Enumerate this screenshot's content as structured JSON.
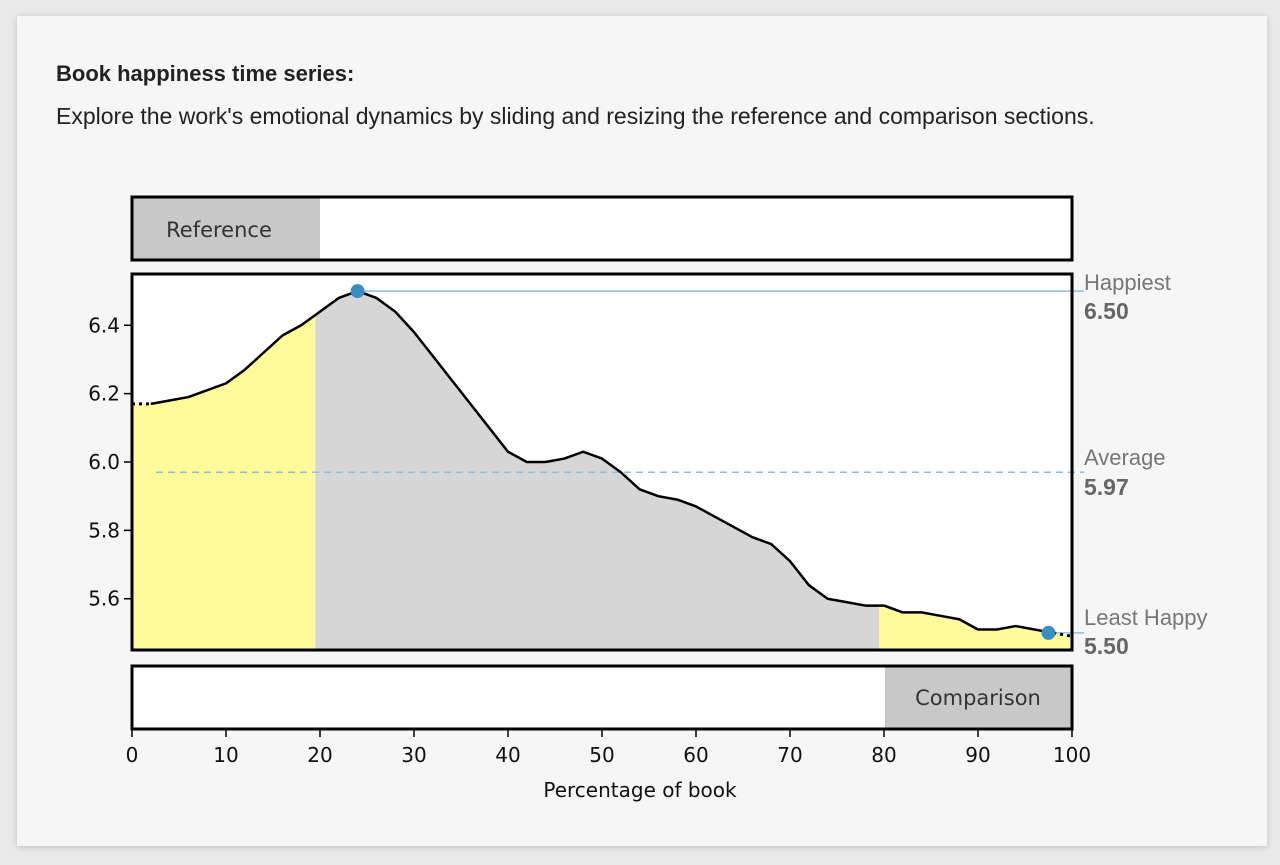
{
  "header": {
    "title": "Book happiness time series:",
    "description": "Explore the work's emotional dynamics by sliding and resizing the reference and comparison sections."
  },
  "sliders": {
    "reference_label": "Reference",
    "reference_range": [
      0,
      20
    ],
    "comparison_label": "Comparison",
    "comparison_range": [
      80,
      100
    ]
  },
  "chart_data": {
    "type": "area",
    "xlabel": "Percentage of book",
    "ylabel": "",
    "xlim": [
      0,
      100
    ],
    "ylim": [
      5.45,
      6.55
    ],
    "x_ticks": [
      0,
      10,
      20,
      30,
      40,
      50,
      60,
      70,
      80,
      90,
      100
    ],
    "y_ticks": [
      5.6,
      5.8,
      6.0,
      6.2,
      6.4
    ],
    "series": [
      {
        "x": [
          0,
          2,
          4,
          6,
          8,
          10,
          12,
          14,
          16,
          18,
          20,
          22,
          24,
          26,
          28,
          30,
          32,
          34,
          36,
          38,
          40,
          42,
          44,
          46,
          48,
          50,
          52,
          54,
          56,
          58,
          60,
          62,
          64,
          66,
          68,
          70,
          72,
          74,
          76,
          78,
          80,
          82,
          84,
          86,
          88,
          90,
          92,
          94,
          96,
          98,
          100
        ],
        "values": [
          6.17,
          6.17,
          6.18,
          6.19,
          6.21,
          6.23,
          6.27,
          6.32,
          6.37,
          6.4,
          6.44,
          6.48,
          6.5,
          6.48,
          6.44,
          6.38,
          6.31,
          6.24,
          6.17,
          6.1,
          6.03,
          6.0,
          6.0,
          6.01,
          6.03,
          6.01,
          5.97,
          5.92,
          5.9,
          5.89,
          5.87,
          5.84,
          5.81,
          5.78,
          5.76,
          5.71,
          5.64,
          5.6,
          5.59,
          5.58,
          5.58,
          5.56,
          5.56,
          5.55,
          5.54,
          5.51,
          5.51,
          5.52,
          5.51,
          5.5,
          5.49
        ]
      }
    ],
    "colors": {
      "reference_fill": "#fffb9a",
      "comparison_fill": "#fffb9a",
      "middle_fill": "#d6d6d6",
      "line": "#000000",
      "marker": "#3a8fc0",
      "guide": "#8fbfd8"
    },
    "annotations": [
      {
        "label": "Happiest",
        "value_text": "6.50",
        "value": 6.5,
        "x": 24
      },
      {
        "label": "Average",
        "value_text": "5.97",
        "value": 5.97
      },
      {
        "label": "Least Happy",
        "value_text": "5.50",
        "value": 5.5,
        "x": 97.5
      }
    ]
  }
}
